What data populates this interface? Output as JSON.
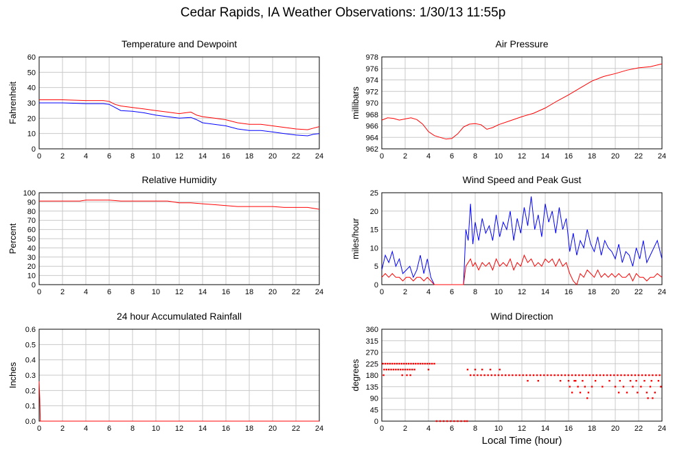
{
  "page": {
    "title": "Cedar Rapids, IA Weather Observations: 1/30/13 11:55p"
  },
  "shared_xlabel": "Local Time (hour)",
  "colors": {
    "red": "#ff0000",
    "blue": "#0000ff",
    "grid": "#c8c8c8"
  },
  "chart_data": [
    {
      "id": "temp",
      "type": "line",
      "title": "Temperature and Dewpoint",
      "xlabel": "",
      "ylabel": "Fahrenheit",
      "xlim": [
        0,
        24
      ],
      "ylim": [
        0,
        60
      ],
      "xticks": [
        0,
        2,
        4,
        6,
        8,
        10,
        12,
        14,
        16,
        18,
        20,
        22,
        24
      ],
      "yticks": [
        0,
        10,
        20,
        30,
        40,
        50,
        60
      ],
      "grid": true,
      "series": [
        {
          "color": "#ff0000",
          "x": [
            0,
            2,
            4,
            5.5,
            6,
            6.5,
            7,
            8,
            9,
            10,
            11,
            12,
            13,
            13.5,
            14,
            15,
            16,
            17,
            18,
            19,
            20,
            21,
            22,
            23,
            23.5,
            24
          ],
          "y": [
            32,
            32,
            31.5,
            31.5,
            31,
            29,
            28,
            27,
            26,
            25,
            24,
            23,
            24,
            22,
            21,
            20,
            19,
            17,
            16,
            16,
            15,
            14,
            13,
            12.5,
            13.5,
            14.5
          ]
        },
        {
          "color": "#0000ff",
          "x": [
            0,
            2,
            4,
            5.5,
            6,
            6.5,
            7,
            8,
            9,
            10,
            11,
            12,
            13,
            13.5,
            14,
            15,
            16,
            17,
            18,
            19,
            20,
            21,
            22,
            23,
            23.5,
            24
          ],
          "y": [
            30,
            30,
            29.5,
            29.5,
            29,
            27,
            25,
            24.5,
            23.5,
            22,
            21,
            20,
            20.5,
            19,
            17,
            16,
            15,
            13,
            12,
            12,
            11,
            10,
            9,
            8.5,
            9.5,
            10
          ]
        }
      ]
    },
    {
      "id": "pressure",
      "type": "line",
      "title": "Air Pressure",
      "xlabel": "",
      "ylabel": "millibars",
      "xlim": [
        0,
        24
      ],
      "ylim": [
        962,
        978
      ],
      "xticks": [
        0,
        2,
        4,
        6,
        8,
        10,
        12,
        14,
        16,
        18,
        20,
        22,
        24
      ],
      "yticks": [
        962,
        964,
        966,
        968,
        970,
        972,
        974,
        976,
        978
      ],
      "grid": true,
      "series": [
        {
          "color": "#ff0000",
          "x": [
            0,
            0.5,
            1,
            1.5,
            2,
            2.5,
            3,
            3.5,
            4,
            4.5,
            5,
            5.5,
            6,
            6.5,
            7,
            7.5,
            8,
            8.5,
            9,
            9.5,
            10,
            11,
            12,
            13,
            14,
            15,
            16,
            17,
            18,
            19,
            20,
            21,
            22,
            23,
            24
          ],
          "y": [
            967,
            967.4,
            967.3,
            967,
            967.2,
            967.4,
            967.1,
            966.3,
            965,
            964.3,
            964,
            963.7,
            963.8,
            964.6,
            965.8,
            966.3,
            966.4,
            966.2,
            965.4,
            965.7,
            966.2,
            966.9,
            967.6,
            968.2,
            969.1,
            970.3,
            971.4,
            972.6,
            973.8,
            974.6,
            975.1,
            975.7,
            976.1,
            976.3,
            976.8
          ]
        }
      ]
    },
    {
      "id": "humidity",
      "type": "line",
      "title": "Relative Humidity",
      "xlabel": "",
      "ylabel": "Percent",
      "xlim": [
        0,
        24
      ],
      "ylim": [
        0,
        100
      ],
      "xticks": [
        0,
        2,
        4,
        6,
        8,
        10,
        12,
        14,
        16,
        18,
        20,
        22,
        24
      ],
      "yticks": [
        0,
        10,
        20,
        30,
        40,
        50,
        60,
        70,
        80,
        90,
        100
      ],
      "grid": true,
      "series": [
        {
          "color": "#ff0000",
          "x": [
            0,
            2,
            3.5,
            4,
            6,
            7,
            8,
            10,
            11,
            12,
            13,
            14,
            15,
            16,
            17,
            18,
            19,
            20,
            21,
            22,
            23,
            23.5,
            24
          ],
          "y": [
            91,
            91,
            91,
            92,
            92,
            91,
            91,
            91,
            91,
            89,
            89,
            88,
            87,
            86,
            85,
            85,
            85,
            85,
            84,
            84,
            84,
            83,
            82
          ]
        }
      ]
    },
    {
      "id": "wind",
      "type": "line",
      "title": "Wind Speed and Peak Gust",
      "xlabel": "",
      "ylabel": "miles/hour",
      "xlim": [
        0,
        24
      ],
      "ylim": [
        0,
        25
      ],
      "xticks": [
        0,
        2,
        4,
        6,
        8,
        10,
        12,
        14,
        16,
        18,
        20,
        22,
        24
      ],
      "yticks": [
        0,
        5,
        10,
        15,
        20,
        25
      ],
      "grid": true,
      "series": [
        {
          "color": "#0000ff",
          "x": [
            0,
            0.3,
            0.6,
            0.9,
            1.2,
            1.5,
            1.8,
            2.1,
            2.4,
            2.7,
            3,
            3.3,
            3.6,
            3.9,
            4.2,
            4.5,
            7,
            7.2,
            7.4,
            7.6,
            7.8,
            8,
            8.3,
            8.6,
            8.9,
            9.2,
            9.5,
            9.8,
            10.1,
            10.4,
            10.7,
            11,
            11.3,
            11.6,
            11.9,
            12.2,
            12.5,
            12.8,
            13.1,
            13.4,
            13.7,
            14,
            14.3,
            14.6,
            14.9,
            15.2,
            15.5,
            15.8,
            16.1,
            16.4,
            16.7,
            17,
            17.3,
            17.6,
            17.9,
            18.2,
            18.5,
            18.8,
            19.1,
            19.4,
            19.7,
            20,
            20.3,
            20.6,
            20.9,
            21.2,
            21.5,
            21.8,
            22.1,
            22.4,
            22.7,
            23,
            23.3,
            23.6,
            24
          ],
          "y": [
            4,
            8,
            6,
            9,
            5,
            7,
            3,
            4,
            5,
            2,
            4,
            8,
            3,
            7,
            2,
            0,
            0,
            15,
            12,
            22,
            11,
            17,
            12,
            18,
            14,
            16,
            12,
            19,
            13,
            17,
            15,
            20,
            12,
            18,
            14,
            21,
            16,
            24,
            15,
            19,
            13,
            22,
            17,
            20,
            14,
            21,
            15,
            18,
            9,
            14,
            8,
            12,
            10,
            15,
            11,
            9,
            13,
            8,
            12,
            10,
            9,
            7,
            11,
            6,
            9,
            8,
            5,
            10,
            7,
            12,
            6,
            8,
            10,
            12,
            7
          ]
        },
        {
          "color": "#ff0000",
          "x": [
            0,
            0.3,
            0.6,
            0.9,
            1.2,
            1.5,
            1.8,
            2.1,
            2.4,
            2.7,
            3,
            3.3,
            3.6,
            3.9,
            4.2,
            4.5,
            7,
            7.2,
            7.4,
            7.6,
            7.8,
            8,
            8.3,
            8.6,
            8.9,
            9.2,
            9.5,
            9.8,
            10.1,
            10.4,
            10.7,
            11,
            11.3,
            11.6,
            11.9,
            12.2,
            12.5,
            12.8,
            13.1,
            13.4,
            13.7,
            14,
            14.3,
            14.6,
            14.9,
            15.2,
            15.5,
            15.8,
            16.1,
            16.4,
            16.7,
            17,
            17.3,
            17.6,
            17.9,
            18.2,
            18.5,
            18.8,
            19.1,
            19.4,
            19.7,
            20,
            20.3,
            20.6,
            20.9,
            21.2,
            21.5,
            21.8,
            22.1,
            22.4,
            22.7,
            23,
            23.3,
            23.6,
            24
          ],
          "y": [
            2,
            3,
            2,
            3,
            2,
            2,
            1,
            2,
            2,
            1,
            2,
            2,
            1,
            2,
            1,
            0,
            0,
            5,
            6,
            7,
            5,
            6,
            4,
            6,
            5,
            6,
            4,
            7,
            5,
            6,
            5,
            7,
            4,
            6,
            5,
            8,
            6,
            7,
            5,
            6,
            5,
            7,
            6,
            7,
            5,
            7,
            5,
            6,
            3,
            1,
            0,
            3,
            2,
            4,
            3,
            2,
            4,
            2,
            3,
            2,
            3,
            2,
            3,
            2,
            2,
            3,
            1,
            3,
            2,
            2,
            1,
            2,
            2,
            3,
            2
          ]
        }
      ]
    },
    {
      "id": "rain",
      "type": "line",
      "title": "24 hour Accumulated Rainfall",
      "xlabel": "",
      "ylabel": "Inches",
      "xlim": [
        0,
        24
      ],
      "ylim": [
        0,
        0.6
      ],
      "xticks": [
        0,
        2,
        4,
        6,
        8,
        10,
        12,
        14,
        16,
        18,
        20,
        22,
        24
      ],
      "yticks": [
        "0.0",
        "0.1",
        "0.2",
        "0.3",
        "0.4",
        "0.5",
        "0.6"
      ],
      "grid": true,
      "series": [
        {
          "color": "#ff0000",
          "x": [
            0,
            0.05,
            0.1,
            24
          ],
          "y": [
            0.26,
            0.15,
            0,
            0
          ]
        }
      ]
    },
    {
      "id": "winddir",
      "type": "scatter",
      "title": "Wind Direction",
      "xlabel": "Local Time (hour)",
      "ylabel": "degrees",
      "xlim": [
        0,
        24
      ],
      "ylim": [
        0,
        360
      ],
      "xticks": [
        0,
        2,
        4,
        6,
        8,
        10,
        12,
        14,
        16,
        18,
        20,
        22,
        24
      ],
      "yticks": [
        0,
        45,
        90,
        135,
        180,
        225,
        270,
        315,
        360
      ],
      "grid": true,
      "series": [
        {
          "color": "#ff0000",
          "x": [
            0.1,
            0.3,
            0.5,
            0.7,
            0.9,
            1.1,
            1.3,
            1.5,
            1.7,
            1.9,
            2.1,
            2.3,
            2.5,
            2.7,
            2.9,
            3.1,
            3.3,
            3.5,
            3.7,
            3.9,
            4.1,
            4.3,
            4.5,
            0.2,
            0.4,
            0.6,
            0.8,
            1.0,
            1.2,
            1.4,
            1.6,
            1.8,
            2.0,
            2.2,
            2.4,
            2.6,
            2.8,
            4.0,
            0.15,
            1.75,
            2.15,
            2.45,
            4.7,
            5.0,
            5.3,
            5.6,
            5.9,
            6.2,
            6.5,
            6.8,
            7.1,
            7.3,
            7.35,
            7.6,
            7.9,
            8.2,
            8.5,
            8.8,
            9.1,
            9.4,
            9.7,
            10.0,
            10.3,
            10.6,
            10.9,
            11.2,
            11.5,
            11.8,
            12.1,
            12.4,
            12.7,
            13.0,
            13.3,
            13.6,
            13.9,
            14.2,
            14.5,
            14.8,
            15.1,
            15.4,
            15.7,
            16.0,
            16.3,
            16.6,
            16.9,
            17.2,
            17.5,
            17.8,
            18.1,
            18.4,
            18.7,
            19.0,
            19.3,
            19.6,
            19.9,
            20.2,
            20.5,
            20.8,
            21.1,
            21.4,
            21.7,
            22.0,
            22.3,
            22.6,
            22.9,
            23.2,
            23.5,
            23.8,
            8.0,
            8.6,
            9.3,
            10.1,
            12.5,
            13.4,
            15.3,
            16.0,
            16.5,
            17.2,
            18.3,
            19.5,
            20.4,
            21.3,
            21.8,
            22.5,
            23.1,
            23.7,
            16.1,
            16.8,
            17.4,
            18.0,
            18.9,
            20.0,
            20.7,
            21.5,
            22.2,
            23.0,
            23.9,
            16.3,
            17.0,
            17.7,
            20.3,
            21.0,
            21.9,
            22.7,
            23.4,
            16.6,
            17.6,
            22.8,
            23.2
          ],
          "y": [
            225,
            225,
            225,
            225,
            225,
            225,
            225,
            225,
            225,
            225,
            225,
            225,
            225,
            225,
            225,
            225,
            225,
            225,
            225,
            225,
            225,
            225,
            225,
            202,
            202,
            202,
            202,
            202,
            202,
            202,
            202,
            202,
            202,
            202,
            202,
            202,
            202,
            202,
            180,
            180,
            180,
            180,
            0,
            0,
            0,
            0,
            0,
            0,
            0,
            0,
            0,
            0,
            202,
            180,
            180,
            180,
            180,
            180,
            180,
            180,
            180,
            180,
            180,
            180,
            180,
            180,
            180,
            180,
            180,
            180,
            180,
            180,
            180,
            180,
            180,
            180,
            180,
            180,
            180,
            180,
            180,
            180,
            180,
            180,
            180,
            180,
            180,
            180,
            180,
            180,
            180,
            180,
            180,
            180,
            180,
            180,
            180,
            180,
            180,
            180,
            180,
            180,
            180,
            180,
            180,
            180,
            180,
            180,
            202,
            202,
            202,
            202,
            158,
            158,
            158,
            158,
            158,
            158,
            158,
            158,
            158,
            158,
            158,
            158,
            158,
            158,
            135,
            135,
            135,
            135,
            135,
            135,
            135,
            135,
            135,
            135,
            135,
            112,
            112,
            112,
            112,
            112,
            112,
            112,
            112,
            158,
            90,
            90,
            90
          ]
        }
      ]
    }
  ]
}
